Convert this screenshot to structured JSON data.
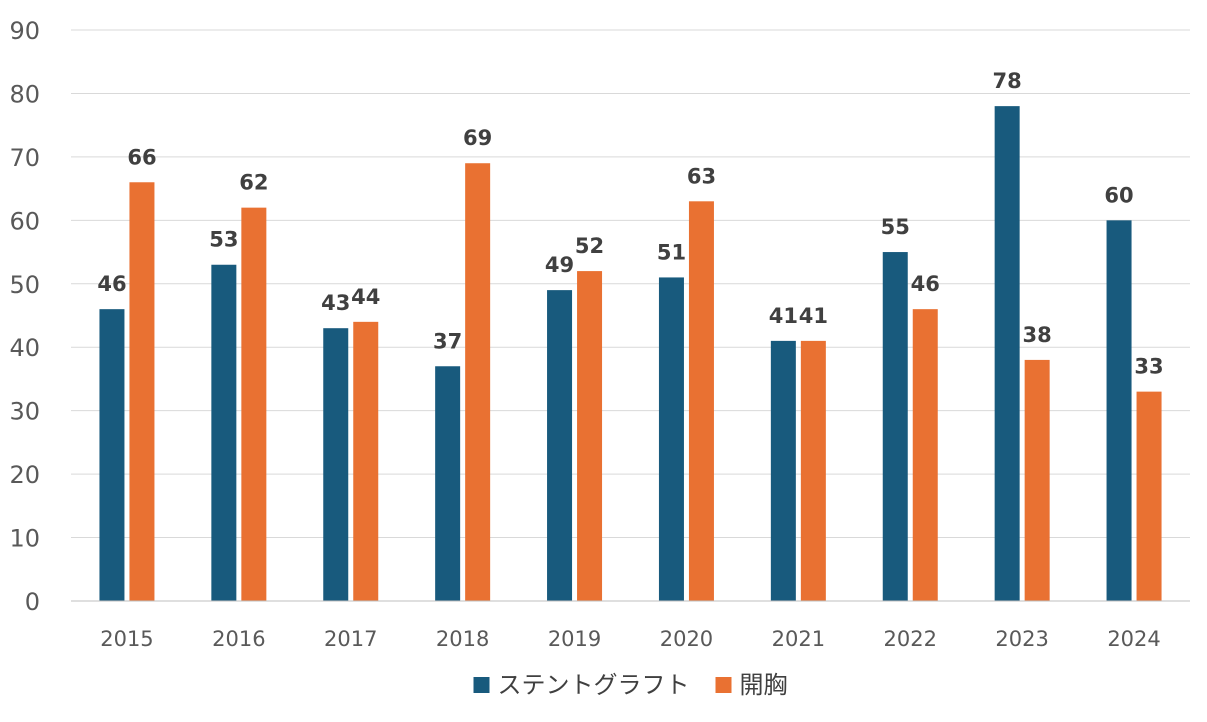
{
  "chart_data": {
    "type": "bar",
    "title": "",
    "xlabel": "",
    "ylabel": "",
    "categories": [
      "2015",
      "2016",
      "2017",
      "2018",
      "2019",
      "2020",
      "2021",
      "2022",
      "2023",
      "2024"
    ],
    "series": [
      {
        "name": "ステントグラフト",
        "color": "#185a7d",
        "values": [
          46,
          53,
          43,
          37,
          49,
          51,
          41,
          55,
          78,
          60
        ]
      },
      {
        "name": "開胸",
        "color": "#e97132",
        "values": [
          66,
          62,
          44,
          69,
          52,
          63,
          41,
          46,
          38,
          33
        ]
      }
    ],
    "ylim": [
      0,
      90
    ],
    "yticks": [
      0,
      10,
      20,
      30,
      40,
      50,
      60,
      70,
      80,
      90
    ],
    "grid": true,
    "data_labels": true,
    "legend_position": "bottom"
  }
}
